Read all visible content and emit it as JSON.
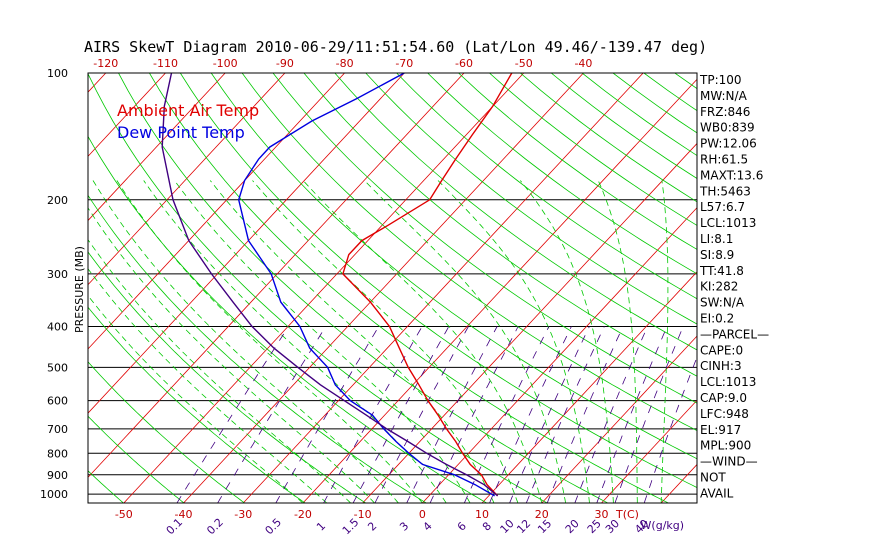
{
  "title": "AIRS SkewT Diagram 2010-06-29/11:51:54.60 (Lat/Lon 49.46/-139.47 deg)",
  "chart_data": {
    "type": "line",
    "title": "AIRS SkewT Diagram 2010-06-29/11:51:54.60 (Lat/Lon 49.46/-139.47 deg)",
    "ylabel": "PRESSURE (MB)",
    "xlabel": "T(C)",
    "mixing_ratio_label": "W(g/kg)",
    "y_scale": "log (inverted)",
    "ylim": [
      1050,
      100
    ],
    "xlim_bottom_at_1050mb": [
      -56,
      46
    ],
    "pressure_ticks": [
      100,
      200,
      300,
      400,
      500,
      600,
      700,
      800,
      900,
      1000
    ],
    "bottom_temp_ticks": [
      -50,
      -40,
      -30,
      -20,
      -10,
      0,
      10,
      20,
      30
    ],
    "top_temp_ticks": [
      -120,
      -110,
      -100,
      -90,
      -80,
      -70,
      -60,
      -50,
      -40
    ],
    "mixing_ratio_ticks": [
      "0.1",
      "0.2",
      "0.5",
      "1",
      "1.5",
      "2",
      "3",
      "4",
      "6",
      "8",
      "10",
      "12",
      "15",
      "20",
      "25",
      "30",
      "40"
    ],
    "legend": [
      {
        "label": "Ambient Air Temp",
        "color": "#e00000"
      },
      {
        "label": "Dew Point Temp",
        "color": "#0000e0"
      }
    ],
    "series": [
      {
        "name": "Ambient Air Temp",
        "color": "#e00000",
        "points": [
          [
            1010,
            11.5
          ],
          [
            950,
            8
          ],
          [
            900,
            5.5
          ],
          [
            850,
            2
          ],
          [
            800,
            -1
          ],
          [
            750,
            -4
          ],
          [
            700,
            -7.5
          ],
          [
            650,
            -11
          ],
          [
            600,
            -15
          ],
          [
            550,
            -19
          ],
          [
            500,
            -23.5
          ],
          [
            450,
            -28
          ],
          [
            400,
            -33
          ],
          [
            350,
            -40
          ],
          [
            300,
            -49
          ],
          [
            270,
            -51
          ],
          [
            250,
            -51
          ],
          [
            230,
            -49
          ],
          [
            200,
            -46
          ],
          [
            180,
            -47
          ],
          [
            160,
            -48
          ],
          [
            140,
            -49
          ],
          [
            120,
            -50
          ],
          [
            100,
            -52
          ]
        ]
      },
      {
        "name": "Dew Point Temp",
        "color": "#0000e0",
        "points": [
          [
            1010,
            11
          ],
          [
            950,
            6
          ],
          [
            900,
            1
          ],
          [
            850,
            -6
          ],
          [
            800,
            -10
          ],
          [
            750,
            -14
          ],
          [
            700,
            -18
          ],
          [
            650,
            -22
          ],
          [
            600,
            -28
          ],
          [
            550,
            -33
          ],
          [
            500,
            -37
          ],
          [
            450,
            -43
          ],
          [
            400,
            -48
          ],
          [
            350,
            -55
          ],
          [
            300,
            -61
          ],
          [
            250,
            -70
          ],
          [
            200,
            -78
          ],
          [
            180,
            -80
          ],
          [
            160,
            -81
          ],
          [
            150,
            -81
          ],
          [
            130,
            -78
          ],
          [
            115,
            -74
          ],
          [
            100,
            -70
          ]
        ]
      },
      {
        "name": "Parcel",
        "color": "#400080",
        "points": [
          [
            1010,
            11.5
          ],
          [
            950,
            7.5
          ],
          [
            900,
            3
          ],
          [
            850,
            -2
          ],
          [
            800,
            -7
          ],
          [
            750,
            -12
          ],
          [
            700,
            -17.5
          ],
          [
            650,
            -23
          ],
          [
            600,
            -29
          ],
          [
            550,
            -35.5
          ],
          [
            500,
            -42
          ],
          [
            450,
            -49
          ],
          [
            400,
            -56
          ],
          [
            350,
            -63
          ],
          [
            300,
            -71
          ],
          [
            250,
            -80
          ],
          [
            200,
            -89
          ],
          [
            150,
            -99
          ],
          [
            120,
            -105
          ],
          [
            100,
            -109
          ]
        ]
      }
    ],
    "indices": [
      "TP:100",
      "MW:N/A",
      "FRZ:846",
      "WB0:839",
      "PW:12.06",
      "RH:61.5",
      "MAXT:13.6",
      "TH:5463",
      "L57:6.7",
      "LCL:1013",
      "LI:8.1",
      "SI:8.9",
      "TT:41.8",
      "KI:282",
      "SW:N/A",
      "EI:0.2",
      "—PARCEL—",
      "CAPE:0",
      "CINH:3",
      "LCL:1013",
      "CAP:9.0",
      "LFC:948",
      "EL:917",
      "MPL:900",
      "—WIND—",
      "NOT",
      "AVAIL"
    ]
  },
  "colors": {
    "isotherm": "#e00000",
    "dry_adiabat": "#00c800",
    "moist_adiabat": "#00c800",
    "mixing_ratio": "#400080",
    "isobar": "#000000",
    "tick_label": "#c00000",
    "mixing_label": "#400080",
    "temp_line": "#e00000",
    "dew_line": "#0000e0",
    "parcel_line": "#400080"
  }
}
